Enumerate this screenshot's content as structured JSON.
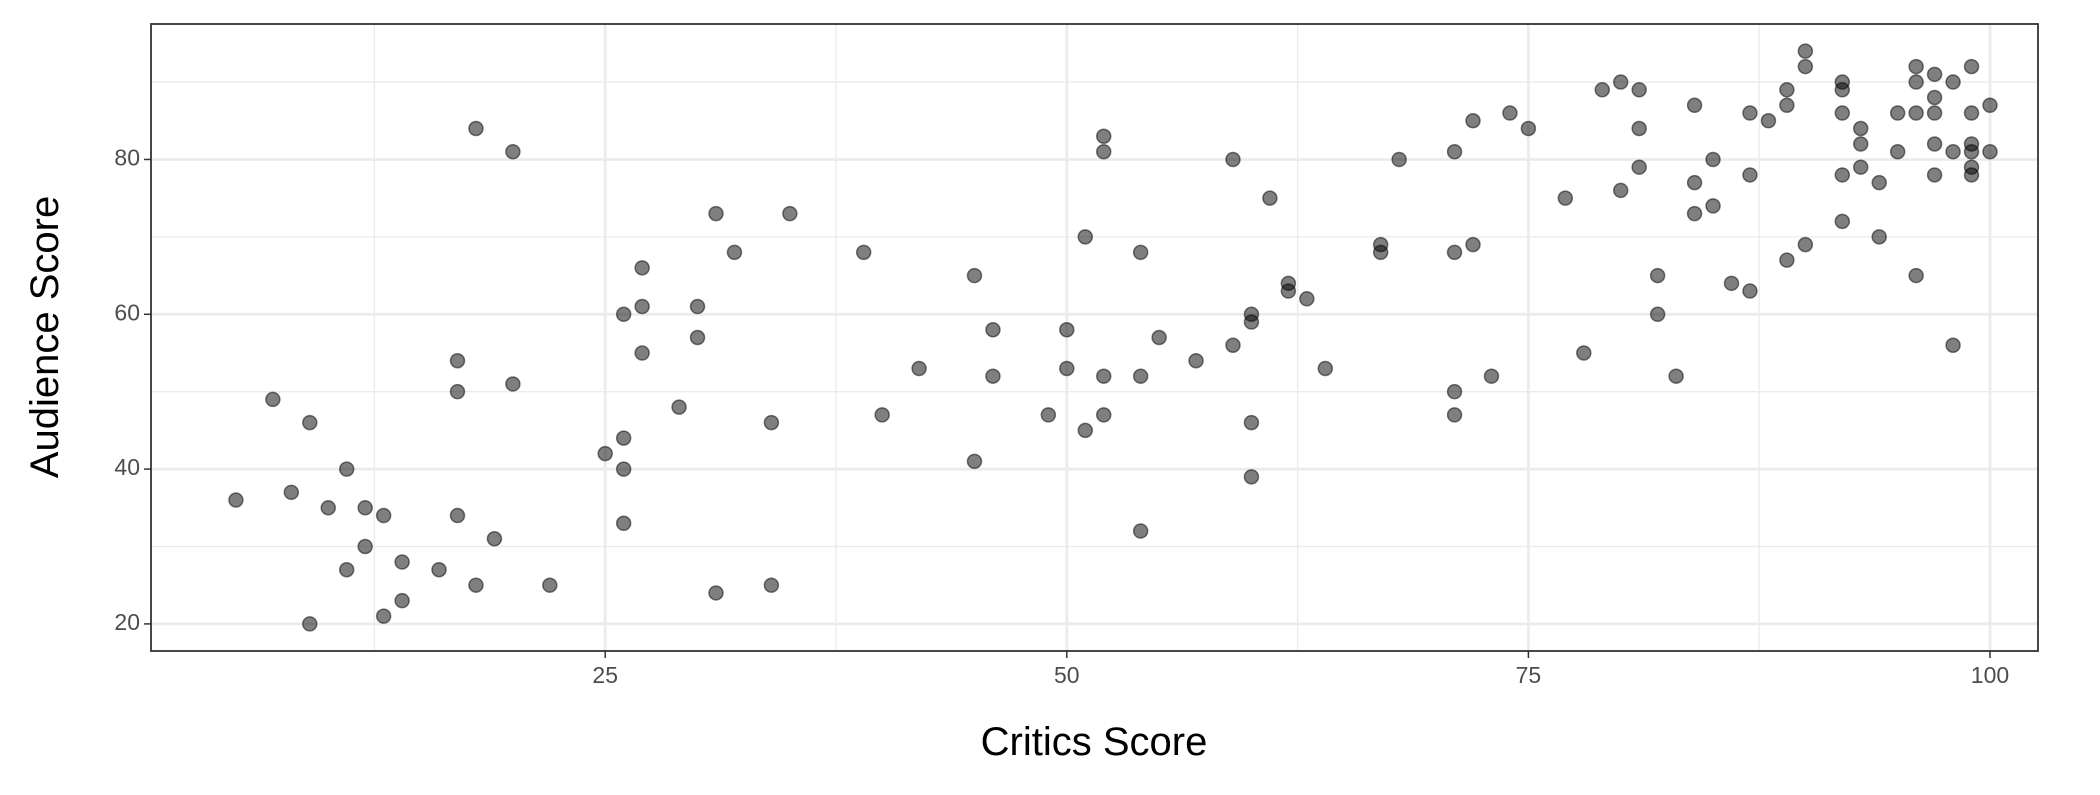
{
  "chart_data": {
    "type": "scatter",
    "x_label": "Critics Score",
    "y_label": "Audience Score",
    "x": [
      5,
      7,
      8,
      9,
      9,
      10,
      11,
      11,
      12,
      12,
      13,
      13,
      14,
      14,
      16,
      17,
      17,
      17,
      18,
      18,
      19,
      20,
      20,
      22,
      25,
      26,
      26,
      26,
      26,
      27,
      27,
      27,
      29,
      30,
      30,
      31,
      31,
      32,
      34,
      34,
      35,
      39,
      40,
      42,
      45,
      45,
      46,
      46,
      49,
      50,
      50,
      51,
      51,
      52,
      52,
      52,
      52,
      54,
      54,
      54,
      55,
      57,
      59,
      59,
      60,
      60,
      60,
      60,
      61,
      62,
      62,
      63,
      64,
      67,
      67,
      68,
      71,
      71,
      71,
      71,
      72,
      72,
      73,
      74,
      75,
      77,
      78,
      79,
      80,
      80,
      81,
      81,
      81,
      82,
      82,
      83,
      84,
      84,
      84,
      85,
      85,
      86,
      87,
      87,
      87,
      88,
      89,
      89,
      89,
      90,
      90,
      90,
      92,
      92,
      92,
      92,
      92,
      93,
      93,
      93,
      94,
      94,
      95,
      95,
      96,
      96,
      96,
      96,
      97,
      97,
      97,
      97,
      97,
      98,
      98,
      98,
      99,
      99,
      99,
      99,
      99,
      99,
      100,
      100
    ],
    "y": [
      36,
      49,
      37,
      46,
      20,
      35,
      40,
      27,
      35,
      30,
      34,
      21,
      28,
      23,
      27,
      54,
      50,
      34,
      84,
      25,
      31,
      81,
      51,
      25,
      42,
      60,
      44,
      40,
      33,
      66,
      61,
      55,
      48,
      61,
      57,
      73,
      24,
      68,
      46,
      25,
      73,
      68,
      47,
      53,
      65,
      41,
      58,
      52,
      47,
      58,
      53,
      70,
      45,
      83,
      81,
      52,
      47,
      68,
      52,
      32,
      57,
      54,
      80,
      56,
      60,
      59,
      46,
      39,
      75,
      64,
      63,
      62,
      53,
      69,
      68,
      80,
      81,
      68,
      50,
      47,
      85,
      69,
      52,
      86,
      84,
      75,
      55,
      89,
      90,
      76,
      89,
      84,
      79,
      65,
      60,
      52,
      87,
      77,
      73,
      80,
      74,
      64,
      86,
      78,
      63,
      85,
      89,
      87,
      67,
      94,
      92,
      69,
      90,
      89,
      86,
      78,
      72,
      84,
      82,
      79,
      77,
      70,
      86,
      81,
      92,
      90,
      86,
      65,
      91,
      88,
      86,
      82,
      78,
      90,
      81,
      56,
      92,
      86,
      82,
      81,
      79,
      78,
      87,
      81
    ],
    "xlim": [
      0.4,
      102.6
    ],
    "ylim": [
      16.5,
      97.5
    ],
    "xticks": [
      25,
      50,
      75,
      100
    ],
    "yticks": [
      20,
      40,
      60,
      80
    ],
    "grid": true,
    "color": "#000000",
    "opacity": 0.5
  }
}
